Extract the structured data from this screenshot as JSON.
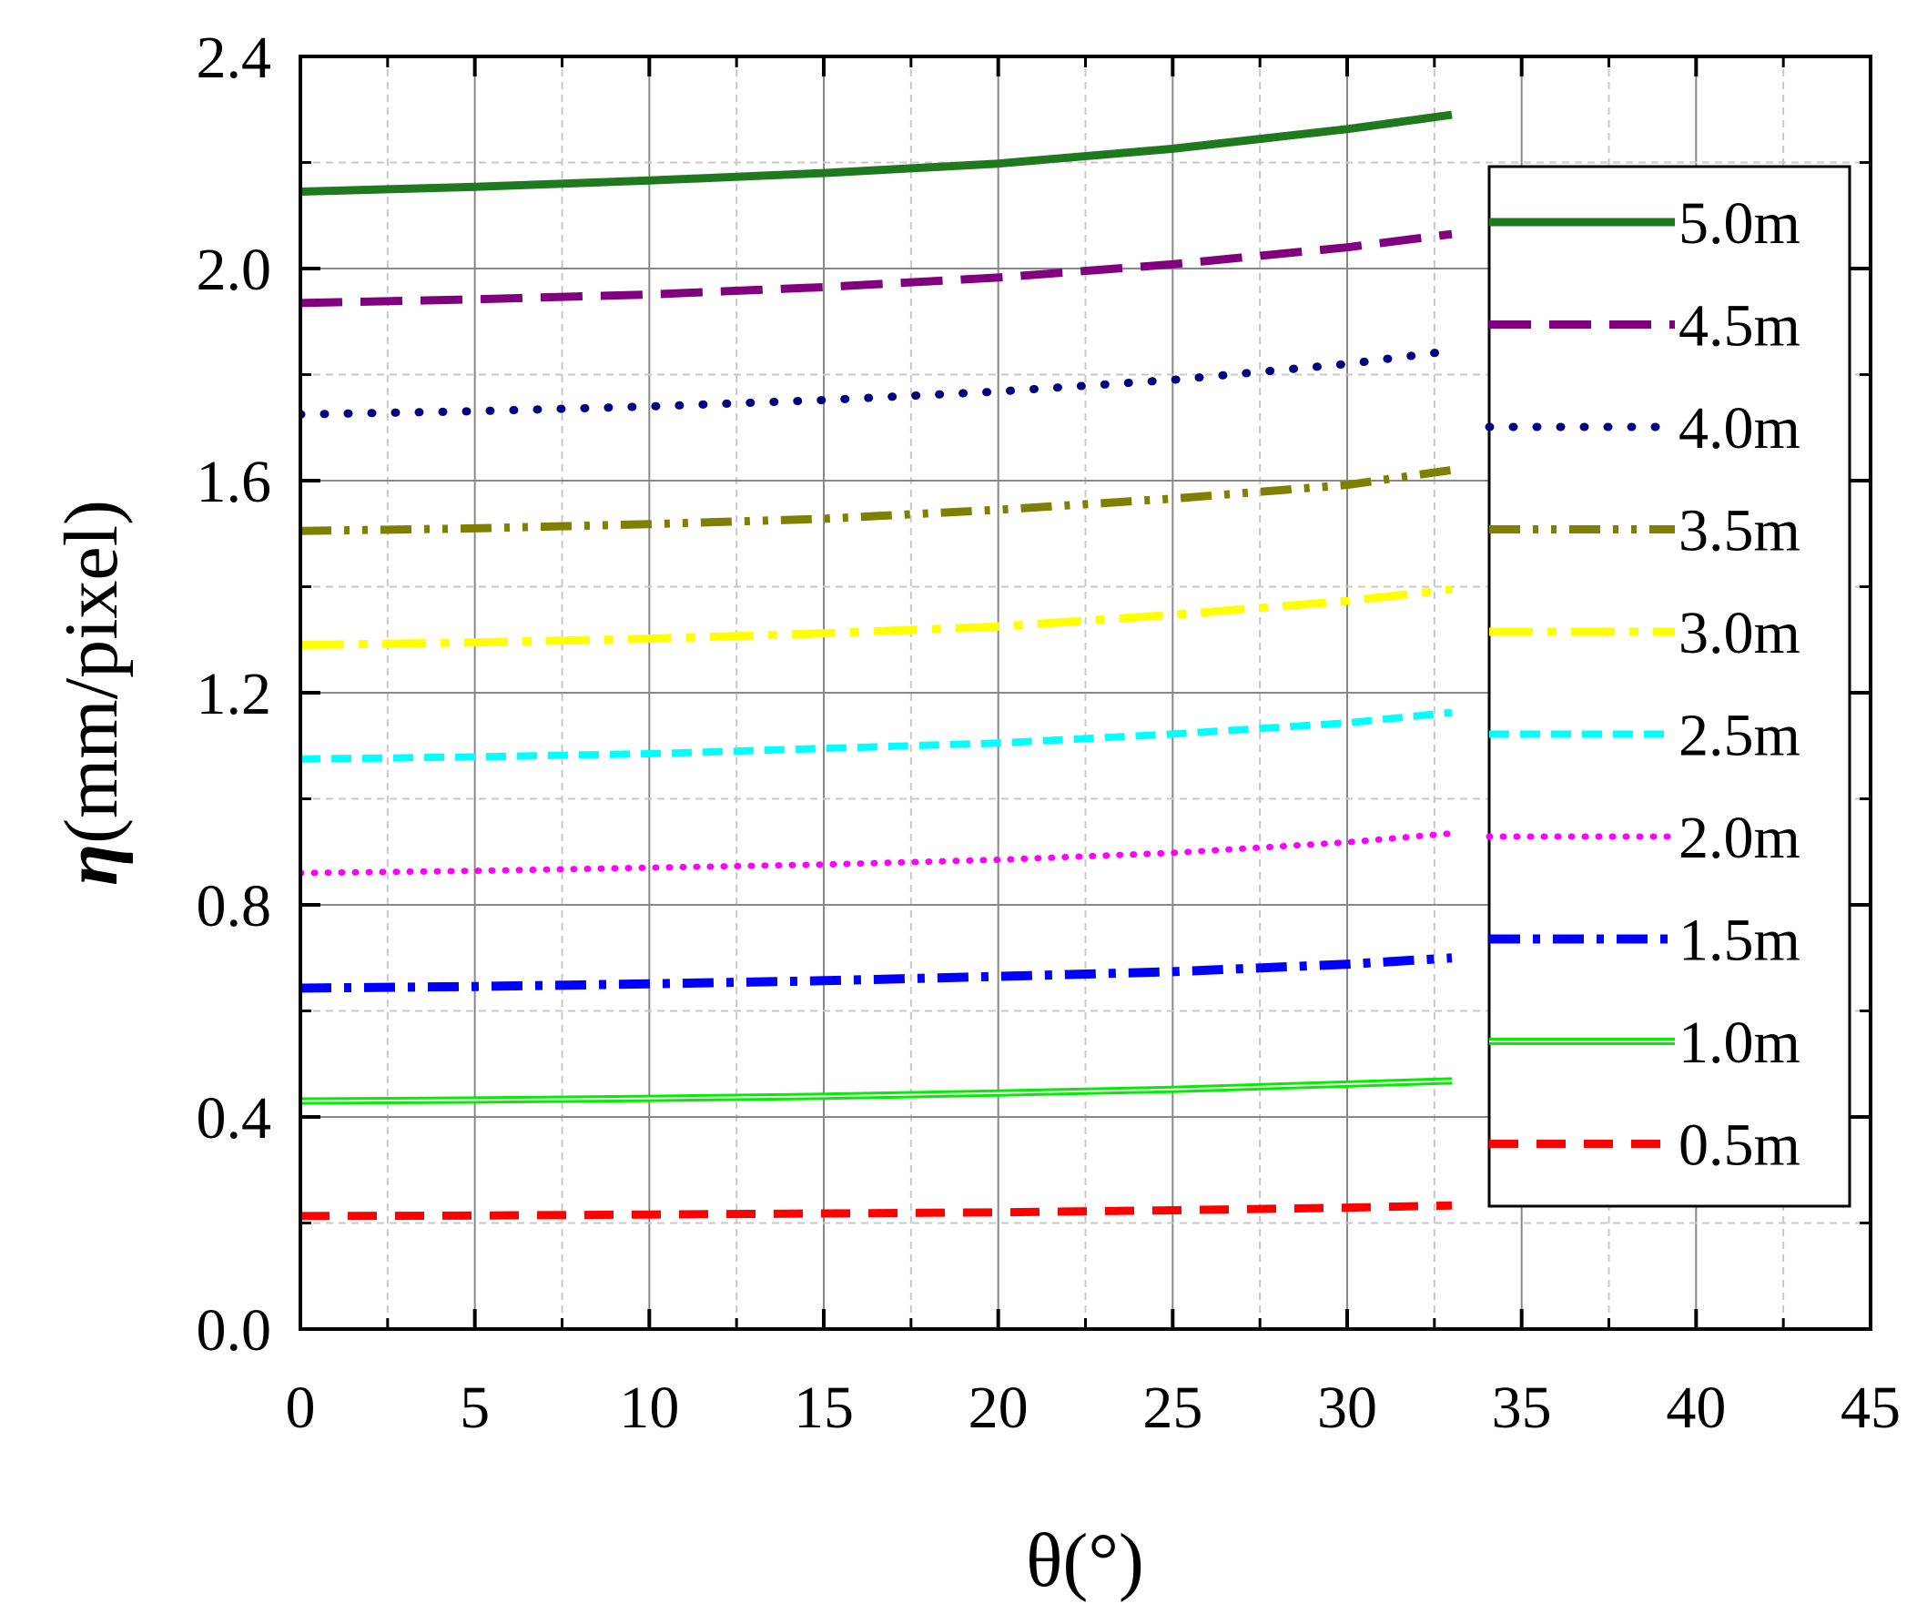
{
  "chart_data": {
    "type": "line",
    "title": "",
    "xlabel": "θ(°)",
    "ylabel": {
      "symbol": "η",
      "unit": "(mm/pixel)"
    },
    "xlim": [
      0,
      45
    ],
    "ylim": [
      0.0,
      2.4
    ],
    "xticks": [
      0,
      5,
      10,
      15,
      20,
      25,
      30,
      35,
      40,
      45
    ],
    "yticks": [
      0.0,
      0.4,
      0.8,
      1.2,
      1.6,
      2.0,
      2.4
    ],
    "xtick_labels": [
      "0",
      "5",
      "10",
      "15",
      "20",
      "25",
      "30",
      "35",
      "40",
      "45"
    ],
    "ytick_labels": [
      "0.0",
      "0.4",
      "0.8",
      "1.2",
      "1.6",
      "2.0",
      "2.4"
    ],
    "grid": true,
    "legend_position": "right",
    "x": [
      0,
      5,
      10,
      15,
      20,
      25,
      30,
      33
    ],
    "series": [
      {
        "name": "5.0m",
        "color": "#1f7a1f",
        "style": "solid-thick",
        "values": [
          2.145,
          2.154,
          2.166,
          2.18,
          2.198,
          2.226,
          2.263,
          2.29
        ]
      },
      {
        "name": "4.5m",
        "color": "#800080",
        "style": "long-dash",
        "values": [
          1.935,
          1.942,
          1.951,
          1.965,
          1.983,
          2.008,
          2.04,
          2.065
        ]
      },
      {
        "name": "4.0m",
        "color": "#000080",
        "style": "dot",
        "values": [
          1.725,
          1.731,
          1.74,
          1.752,
          1.768,
          1.79,
          1.82,
          1.845
        ]
      },
      {
        "name": "3.5m",
        "color": "#808000",
        "style": "dash-dot-dot",
        "values": [
          1.505,
          1.51,
          1.518,
          1.528,
          1.545,
          1.566,
          1.592,
          1.62
        ]
      },
      {
        "name": "3.0m",
        "color": "#ffff00",
        "style": "dash-dot",
        "values": [
          1.29,
          1.295,
          1.302,
          1.312,
          1.325,
          1.347,
          1.373,
          1.395
        ]
      },
      {
        "name": "2.5m",
        "color": "#00ffff",
        "style": "short-dash",
        "values": [
          1.075,
          1.079,
          1.085,
          1.095,
          1.105,
          1.122,
          1.143,
          1.163
        ]
      },
      {
        "name": "2.0m",
        "color": "#ff00ff",
        "style": "short-dot",
        "values": [
          0.86,
          0.864,
          0.87,
          0.876,
          0.885,
          0.898,
          0.918,
          0.935
        ]
      },
      {
        "name": "1.5m",
        "color": "#0000ff",
        "style": "dash-dot-thick",
        "values": [
          0.643,
          0.646,
          0.651,
          0.657,
          0.665,
          0.674,
          0.688,
          0.7
        ]
      },
      {
        "name": "1.0m",
        "color": "#00ee00",
        "style": "solid-double",
        "values": [
          0.43,
          0.432,
          0.435,
          0.439,
          0.445,
          0.452,
          0.462,
          0.468
        ]
      },
      {
        "name": "0.5m",
        "color": "#ff0000",
        "style": "dash",
        "values": [
          0.213,
          0.214,
          0.216,
          0.218,
          0.22,
          0.224,
          0.229,
          0.233
        ]
      }
    ]
  }
}
